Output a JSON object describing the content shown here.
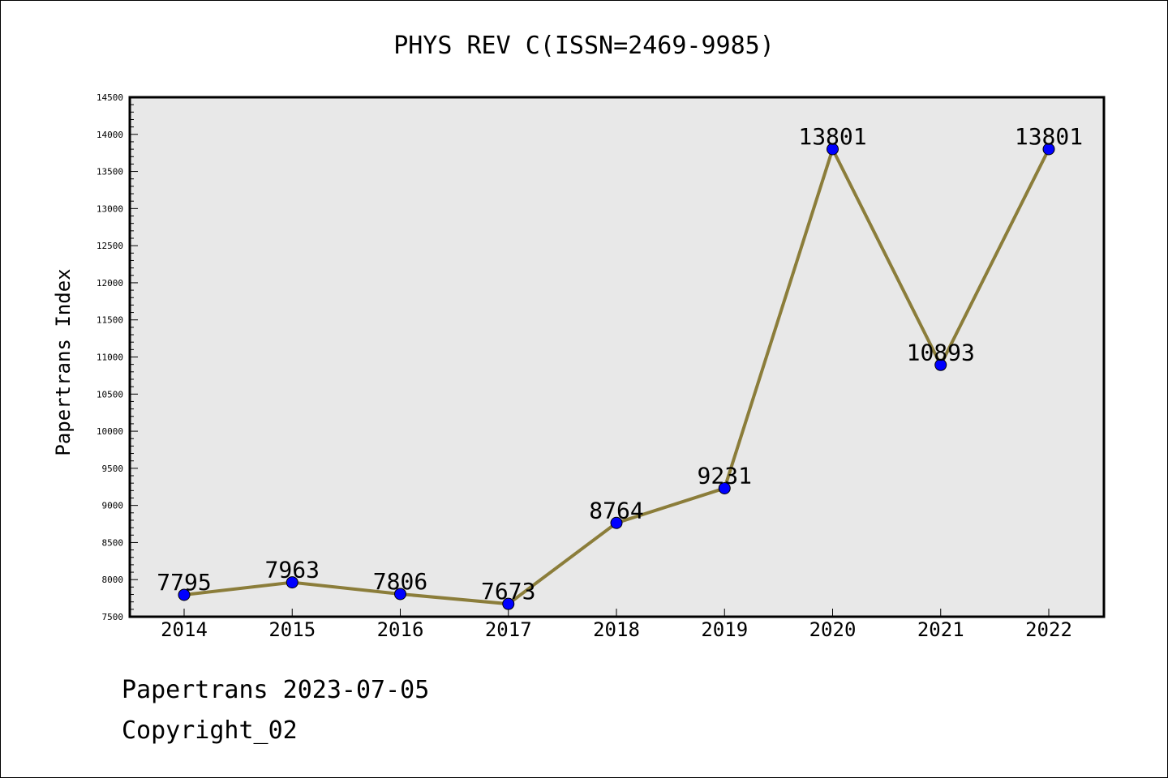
{
  "chart_data": {
    "type": "line",
    "title": "PHYS REV C(ISSN=2469-9985)",
    "xlabel": "",
    "ylabel": "Papertrans Index",
    "categories": [
      "2014",
      "2015",
      "2016",
      "2017",
      "2018",
      "2019",
      "2020",
      "2021",
      "2022"
    ],
    "values": [
      7795,
      7963,
      7806,
      7673,
      8764,
      9231,
      13801,
      10893,
      13801
    ],
    "ylim": [
      7500,
      14500
    ],
    "yticks": [
      7500,
      8000,
      8500,
      9000,
      9500,
      10000,
      10500,
      11000,
      11500,
      12000,
      12500,
      13000,
      13500,
      14000,
      14500
    ],
    "grid": false,
    "legend": "none",
    "line_color": "#8b7d3a",
    "marker_color": "#0000ff",
    "plot_background": "#e8e8e8"
  },
  "footer": {
    "line1": "Papertrans 2023-07-05",
    "line2": "Copyright_02"
  }
}
